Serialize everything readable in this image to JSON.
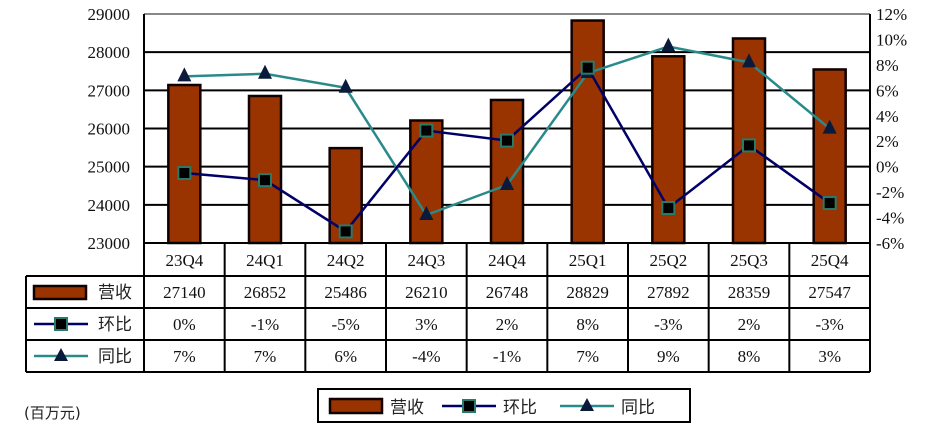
{
  "chart_data": {
    "type": "bar+line",
    "unit_note": "(百万元)",
    "categories": [
      "23Q4",
      "24Q1",
      "24Q2",
      "24Q3",
      "24Q4",
      "25Q1",
      "25Q2",
      "25Q3",
      "25Q4"
    ],
    "left_axis": {
      "ylim": [
        23000,
        29000
      ],
      "ticks": [
        23000,
        24000,
        25000,
        26000,
        27000,
        28000,
        29000
      ]
    },
    "right_axis": {
      "ylim": [
        -6,
        12
      ],
      "ticks": [
        "-6%",
        "-4%",
        "-2%",
        "0%",
        "2%",
        "4%",
        "6%",
        "8%",
        "10%",
        "12%"
      ],
      "tick_values": [
        -6,
        -4,
        -2,
        0,
        2,
        4,
        6,
        8,
        10,
        12
      ]
    },
    "series": [
      {
        "name": "营收",
        "type": "bar",
        "axis": "left",
        "color": "#993300",
        "values": [
          27140,
          26852,
          25486,
          26210,
          26748,
          28829,
          27892,
          28359,
          27547
        ],
        "labels": [
          "27140",
          "26852",
          "25486",
          "26210",
          "26748",
          "28829",
          "27892",
          "28359",
          "27547"
        ]
      },
      {
        "name": "环比",
        "type": "line",
        "axis": "right",
        "color": "#000066",
        "marker": "square",
        "values": [
          -0.5,
          -1.06,
          -5.09,
          2.84,
          2.05,
          7.78,
          -3.25,
          1.67,
          -2.86
        ],
        "labels": [
          "0%",
          "-1%",
          "-5%",
          "3%",
          "2%",
          "8%",
          "-3%",
          "2%",
          "-3%"
        ]
      },
      {
        "name": "同比",
        "type": "line",
        "axis": "right",
        "color": "#2a8a8a",
        "marker": "triangle",
        "values": [
          7.1,
          7.3,
          6.2,
          -3.8,
          -1.44,
          7.36,
          9.44,
          8.2,
          2.99
        ],
        "labels": [
          "7%",
          "7%",
          "6%",
          "-4%",
          "-1%",
          "7%",
          "9%",
          "8%",
          "3%"
        ]
      }
    ],
    "grid": true,
    "legend": "bottom-center"
  }
}
